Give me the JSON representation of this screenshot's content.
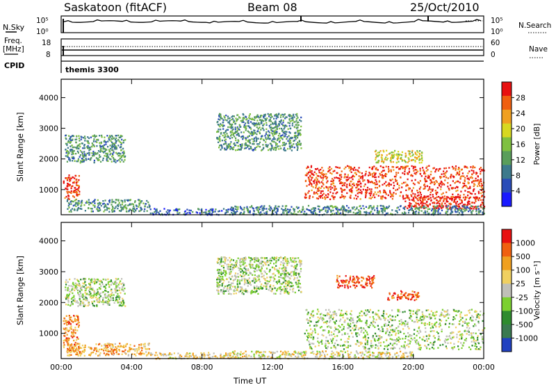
{
  "header": {
    "station": "Saskatoon (fitACF)",
    "beam": "Beam 08",
    "date": "25/Oct/2010"
  },
  "noise_panel": {
    "left_label": "N.Sky",
    "left_ticks": [
      "10^5",
      "10^0"
    ],
    "right_label": "N.Search",
    "right_ticks": [
      "10^5",
      "10^0"
    ]
  },
  "freq_panel": {
    "left_label_1": "Freq.",
    "left_label_2": "[MHz]",
    "left_ticks": [
      "18",
      "8"
    ],
    "right_label": "Nave",
    "right_ticks": [
      "60",
      "0"
    ]
  },
  "cpid_panel": {
    "label": "CPID",
    "value": "themis 3300"
  },
  "chart_data": [
    {
      "type": "heatmap",
      "name": "power",
      "ylabel": "Slant Range [km]",
      "xlabel": "",
      "x_ticks": [
        "00:00",
        "04:00",
        "08:00",
        "12:00",
        "16:00",
        "20:00",
        "00:00"
      ],
      "xlim_hours": [
        0,
        24
      ],
      "y_ticks": [
        1000,
        2000,
        3000,
        4000
      ],
      "ylim": [
        180,
        4600
      ],
      "colorbar": {
        "label": "Power [dB]",
        "ticks": [
          4,
          8,
          12,
          16,
          20,
          24,
          28
        ],
        "range": [
          0,
          32
        ],
        "colors": [
          "#1a1aff",
          "#2a4cb8",
          "#3d7a8c",
          "#5a9e5a",
          "#7fc040",
          "#d8d820",
          "#f0a020",
          "#f06010",
          "#e81010"
        ]
      },
      "regions": [
        {
          "t0": 0.1,
          "t1": 1.0,
          "r0": 700,
          "r1": 1500,
          "level": 0.9
        },
        {
          "t0": 0.2,
          "t1": 3.6,
          "r0": 1900,
          "r1": 2800,
          "level": 0.35
        },
        {
          "t0": 0.3,
          "t1": 5.0,
          "r0": 300,
          "r1": 700,
          "level": 0.35
        },
        {
          "t0": 5.0,
          "t1": 9.5,
          "r0": 200,
          "r1": 400,
          "level": 0.2
        },
        {
          "t0": 8.8,
          "t1": 13.6,
          "r0": 2300,
          "r1": 3500,
          "level": 0.35
        },
        {
          "t0": 13.8,
          "t1": 24.0,
          "r0": 700,
          "r1": 1800,
          "level": 0.9
        },
        {
          "t0": 19.5,
          "t1": 24.0,
          "r0": 400,
          "r1": 800,
          "level": 0.95
        },
        {
          "t0": 17.8,
          "t1": 20.5,
          "r0": 1900,
          "r1": 2300,
          "level": 0.6
        },
        {
          "t0": 9.5,
          "t1": 24.0,
          "r0": 200,
          "r1": 500,
          "level": 0.3
        }
      ]
    },
    {
      "type": "heatmap",
      "name": "velocity",
      "ylabel": "Slant Range [km]",
      "xlabel": "Time UT",
      "x_ticks": [
        "00:00",
        "04:00",
        "08:00",
        "12:00",
        "16:00",
        "20:00",
        "00:00"
      ],
      "xlim_hours": [
        0,
        24
      ],
      "y_ticks": [
        1000,
        2000,
        3000,
        4000
      ],
      "ylim": [
        180,
        4600
      ],
      "colorbar": {
        "label": "Velocity [m s^-1]",
        "ticks": [
          "1000",
          "500",
          "100",
          "25",
          "-25",
          "-100",
          "-500",
          "-1000"
        ],
        "colors": [
          "#2040c0",
          "#3a7a50",
          "#2e8b2e",
          "#7cd030",
          "#c0c0b8",
          "#f0d060",
          "#f0a020",
          "#f06010",
          "#e81010"
        ]
      },
      "regions": [
        {
          "t0": 0.1,
          "t1": 1.0,
          "r0": 400,
          "r1": 1600,
          "level": 0.75
        },
        {
          "t0": 0.2,
          "t1": 3.6,
          "r0": 1900,
          "r1": 2800,
          "level": 0.45
        },
        {
          "t0": 0.3,
          "t1": 5.0,
          "r0": 300,
          "r1": 700,
          "level": 0.7
        },
        {
          "t0": 5.0,
          "t1": 9.5,
          "r0": 200,
          "r1": 400,
          "level": 0.6
        },
        {
          "t0": 8.8,
          "t1": 13.6,
          "r0": 2300,
          "r1": 3500,
          "level": 0.45
        },
        {
          "t0": 13.8,
          "t1": 24.0,
          "r0": 500,
          "r1": 1800,
          "level": 0.45
        },
        {
          "t0": 15.6,
          "t1": 17.8,
          "r0": 2500,
          "r1": 2900,
          "level": 0.9
        },
        {
          "t0": 18.5,
          "t1": 20.3,
          "r0": 2100,
          "r1": 2400,
          "level": 0.85
        },
        {
          "t0": 9.5,
          "t1": 20.0,
          "r0": 200,
          "r1": 450,
          "level": 0.55
        }
      ]
    }
  ]
}
